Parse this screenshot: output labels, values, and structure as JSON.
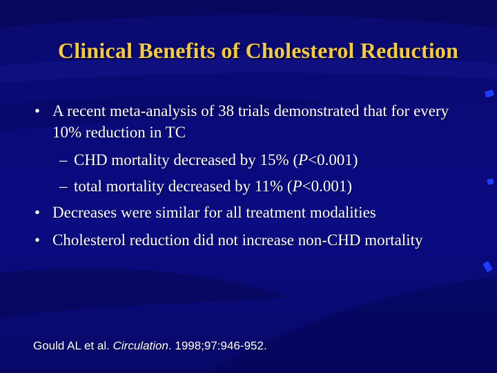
{
  "slide": {
    "title": "Clinical Benefits of Cholesterol Reduction",
    "bullets": [
      {
        "mark": "•",
        "text": "A recent meta-analysis of 38 trials demonstrated that for every 10% reduction in TC"
      },
      {
        "mark": "•",
        "text": "Decreases were similar for all treatment modalities"
      },
      {
        "mark": "•",
        "text": "Cholesterol reduction did not increase non-CHD mortality"
      }
    ],
    "sub_bullets": [
      {
        "mark": "–",
        "before": "CHD mortality decreased by 15% (",
        "p": "P",
        "after": "<0.001)"
      },
      {
        "mark": "–",
        "before": "total mortality decreased by 11% (",
        "p": "P",
        "after": "<0.001)"
      }
    ],
    "citation": {
      "authors": "Gould AL et al.",
      "journal": "Circulation",
      "details": ". 1998;97:946-952."
    }
  },
  "colors": {
    "background": "#0a0a7a",
    "title": "#f2c94a",
    "text": "#ffffff",
    "accent_dash": "#1e3cff"
  }
}
